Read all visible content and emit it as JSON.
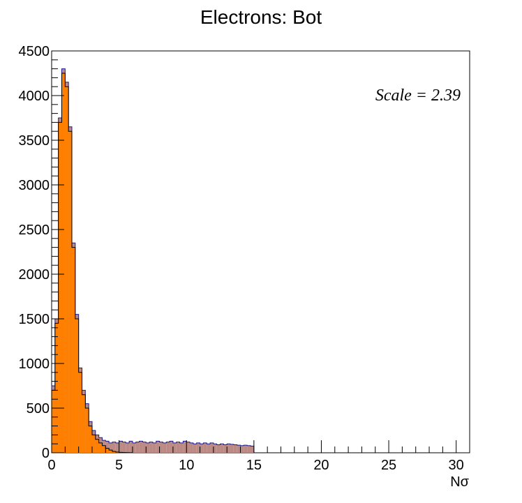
{
  "chart_data": {
    "type": "bar",
    "title": "Electrons: Bot",
    "xlabel": "Nσ",
    "ylabel": "",
    "xlim": [
      0,
      31
    ],
    "ylim": [
      0,
      4500
    ],
    "bin_width": 0.25,
    "x_ticks": [
      "0",
      "5",
      "10",
      "15",
      "20",
      "25",
      "30"
    ],
    "y_ticks": [
      "0",
      "500",
      "1000",
      "1500",
      "2000",
      "2500",
      "3000",
      "3500",
      "4000",
      "4500"
    ],
    "annotation": "Scale = 2.39",
    "grid": false,
    "series": [
      {
        "role": "total",
        "color": "#bc8a85",
        "edge": "#1a1a8c",
        "values": [
          750,
          1500,
          3750,
          4300,
          4150,
          3650,
          2350,
          1550,
          950,
          700,
          550,
          350,
          250,
          200,
          170,
          140,
          130,
          110,
          120,
          110,
          130,
          120,
          110,
          130,
          110,
          120,
          130,
          120,
          110,
          120,
          110,
          130,
          120,
          110,
          120,
          130,
          110,
          120,
          110,
          130,
          120,
          110,
          100,
          110,
          100,
          110,
          100,
          110,
          100,
          90,
          100,
          90,
          100,
          95,
          90,
          85,
          80,
          85,
          80,
          75
        ]
      },
      {
        "role": "signal",
        "color": "#ff7f00",
        "edge": "#000000",
        "values": [
          700,
          1450,
          3700,
          4250,
          4100,
          3600,
          2300,
          1500,
          900,
          650,
          500,
          300,
          200,
          150,
          110,
          80,
          50,
          30,
          15,
          8,
          5,
          3,
          2,
          1
        ]
      }
    ]
  }
}
